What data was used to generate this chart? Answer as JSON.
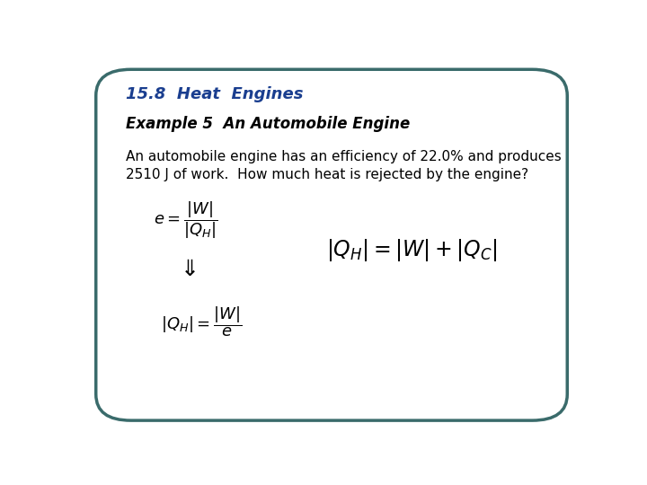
{
  "title": "15.8  Heat  Engines",
  "subtitle": "Example 5  An Automobile Engine",
  "body_line1": "An automobile engine has an efficiency of 22.0% and produces",
  "body_line2": "2510 J of work.  How much heat is rejected by the engine?",
  "title_color": "#1a3e8f",
  "subtitle_color": "#000000",
  "body_color": "#000000",
  "formula_color": "#000000",
  "bg_color": "#ffffff",
  "border_color": "#3a6b6b",
  "fig_width": 7.2,
  "fig_height": 5.4,
  "dpi": 100
}
